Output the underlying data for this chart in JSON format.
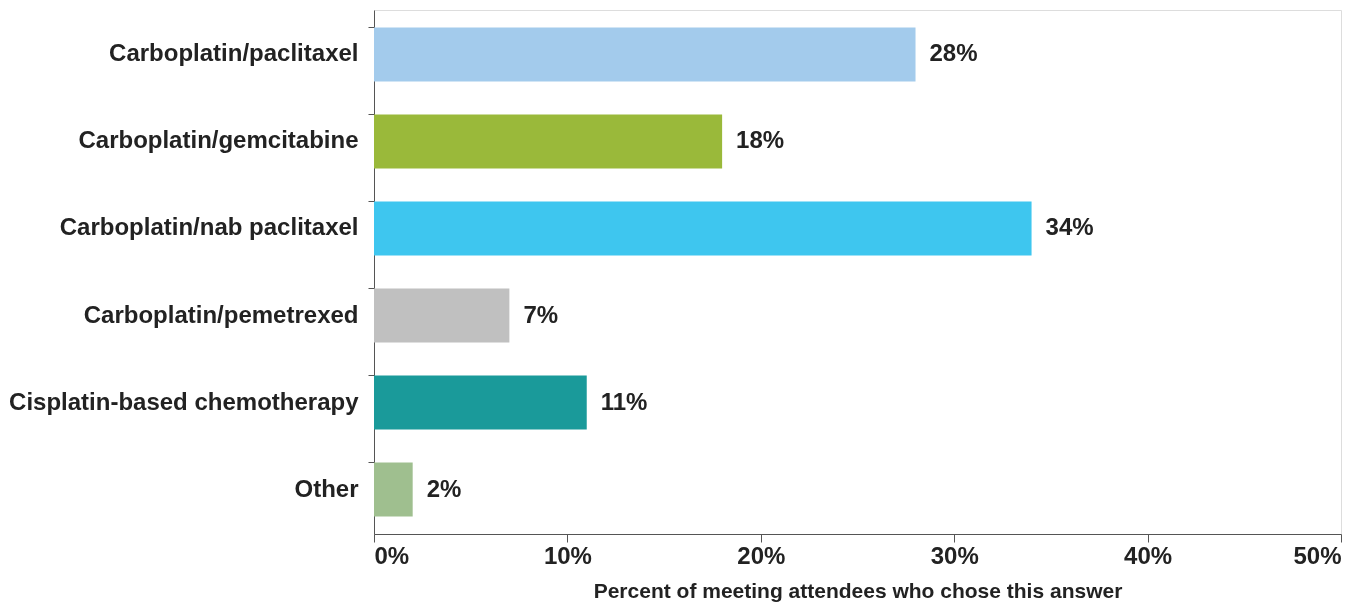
{
  "chart_data": {
    "type": "bar",
    "orientation": "horizontal",
    "xlabel": "Percent of meeting attendees who chose this answer",
    "categories": [
      "Carboplatin/paclitaxel",
      "Carboplatin/gemcitabine",
      "Carboplatin/nab paclitaxel",
      "Carboplatin/pemetrexed",
      "Cisplatin-based chemotherapy",
      "Other"
    ],
    "values": [
      28,
      18,
      34,
      7,
      11,
      2
    ],
    "colors": [
      "#a3cbec",
      "#9ab93a",
      "#3ec6ef",
      "#c0c0c0",
      "#1a9a9a",
      "#9fbf8f"
    ],
    "value_labels": [
      "28%",
      "18%",
      "34%",
      "7%",
      "11%",
      "2%"
    ],
    "xlim": [
      0,
      50
    ],
    "xticks": [
      {
        "value": 0,
        "label": "0%"
      },
      {
        "value": 10,
        "label": "10%"
      },
      {
        "value": 20,
        "label": "20%"
      },
      {
        "value": 30,
        "label": "30%"
      },
      {
        "value": 40,
        "label": "40%"
      },
      {
        "value": 50,
        "label": "50%"
      }
    ],
    "grid": false
  }
}
